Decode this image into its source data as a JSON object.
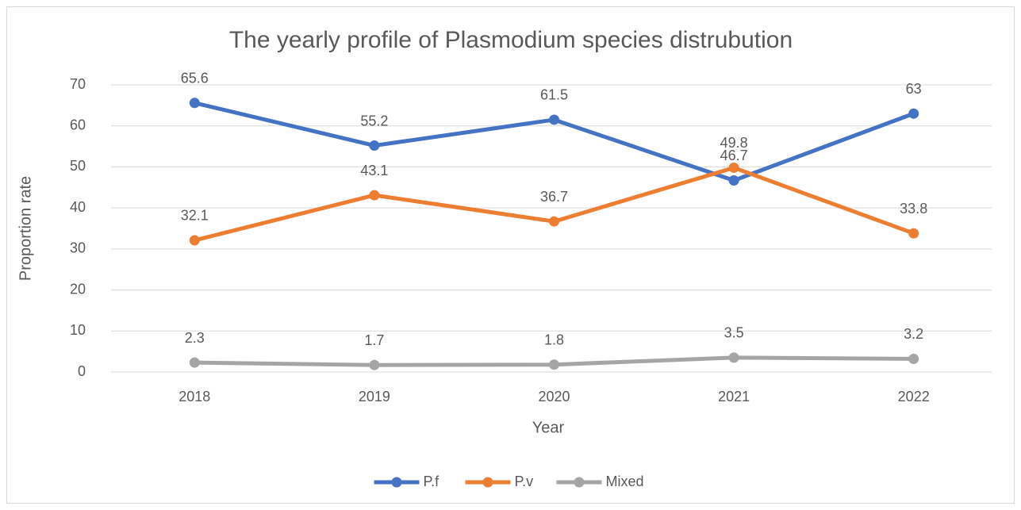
{
  "chart_data": {
    "type": "line",
    "title": "The yearly profile of Plasmodium species distrubution",
    "x_label": "Year",
    "y_label": "Proportion rate",
    "categories": [
      "2018",
      "2019",
      "2020",
      "2021",
      "2022"
    ],
    "series": [
      {
        "name": "P.f",
        "color": "#4472c4",
        "values": [
          65.6,
          55.2,
          61.5,
          46.7,
          63
        ]
      },
      {
        "name": "P.v",
        "color": "#ed7d31",
        "values": [
          32.1,
          43.1,
          36.7,
          49.8,
          33.8
        ]
      },
      {
        "name": "Mixed",
        "color": "#a5a5a5",
        "values": [
          2.3,
          1.7,
          1.8,
          3.5,
          3.2
        ]
      }
    ],
    "ylim": [
      0,
      70
    ],
    "yticks": [
      0,
      10,
      20,
      30,
      40,
      50,
      60,
      70
    ],
    "grid": true,
    "legend": "bottom"
  }
}
